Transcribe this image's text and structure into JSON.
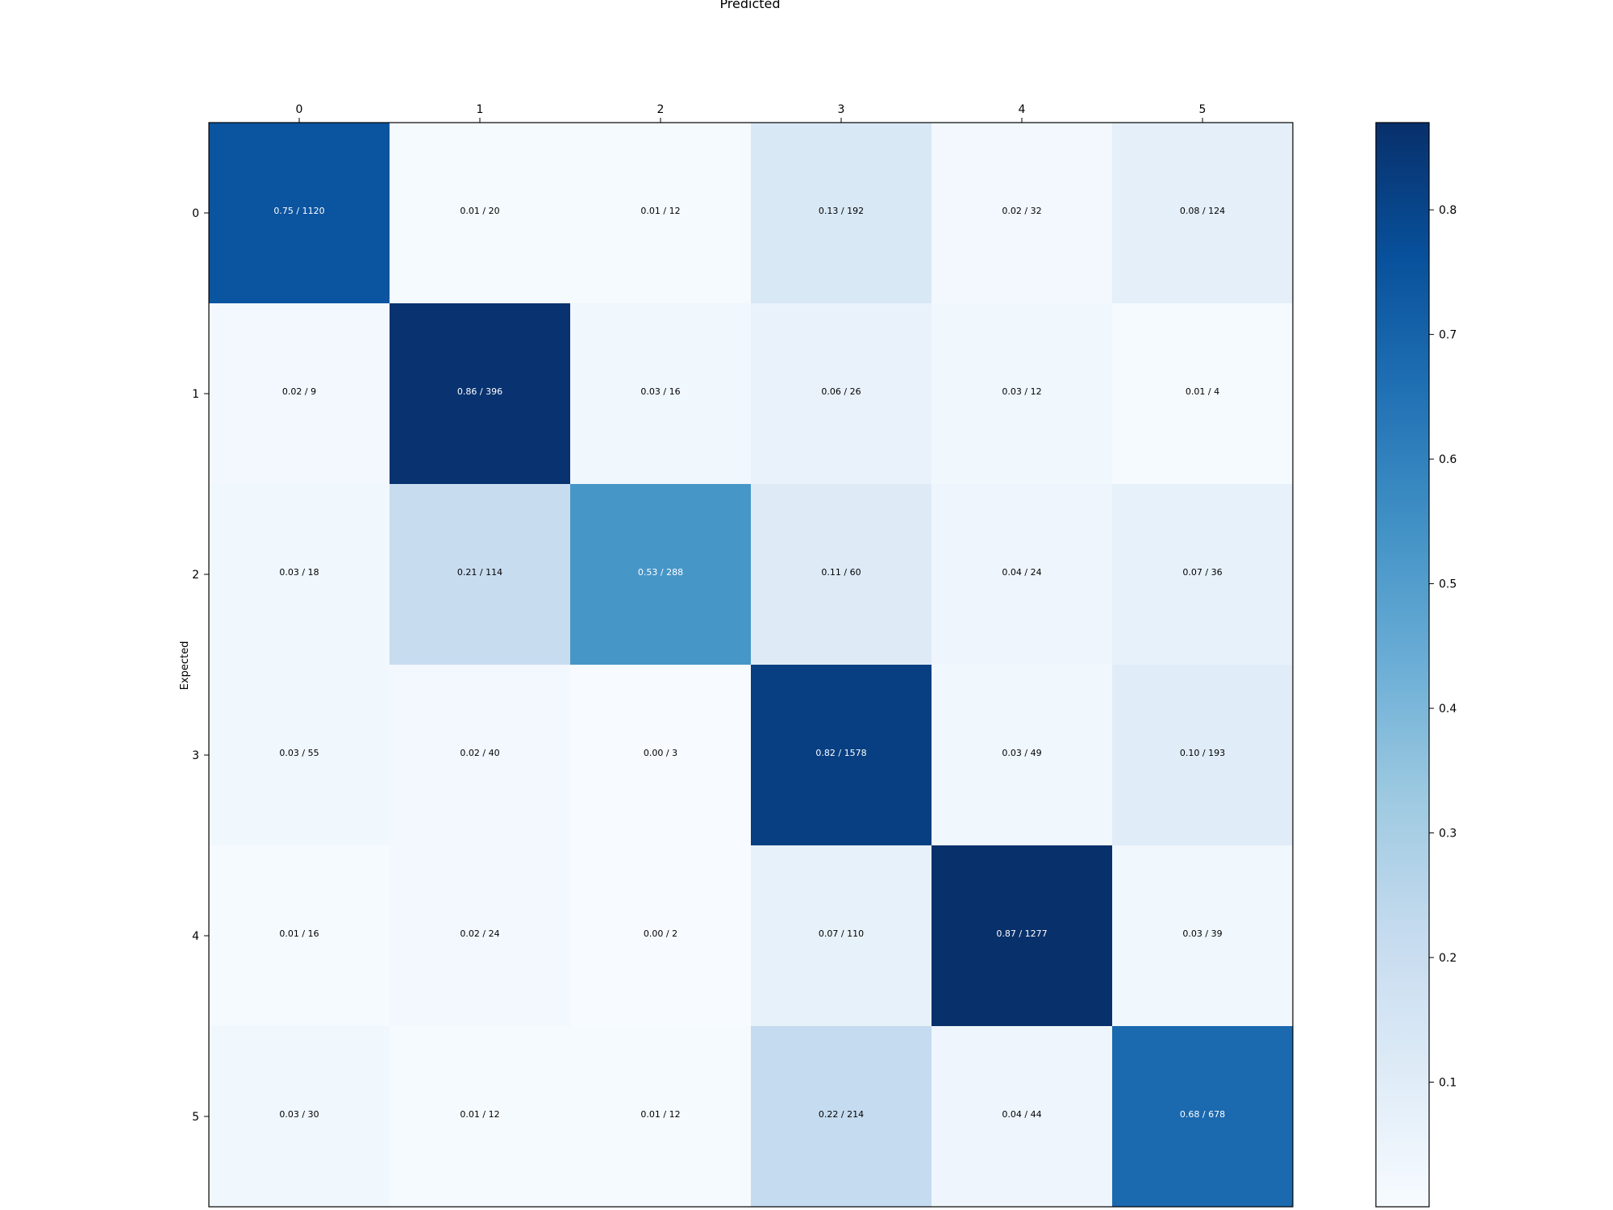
{
  "chart_data": {
    "type": "heatmap",
    "title": "Predicted",
    "xlabel": "Predicted",
    "ylabel": "Expected",
    "x_categories": [
      "0",
      "1",
      "2",
      "3",
      "4",
      "5"
    ],
    "y_categories": [
      "0",
      "1",
      "2",
      "3",
      "4",
      "5"
    ],
    "values": [
      [
        0.75,
        0.01,
        0.01,
        0.13,
        0.02,
        0.08
      ],
      [
        0.02,
        0.86,
        0.03,
        0.06,
        0.03,
        0.01
      ],
      [
        0.03,
        0.21,
        0.53,
        0.11,
        0.04,
        0.07
      ],
      [
        0.03,
        0.02,
        0.0,
        0.82,
        0.03,
        0.1
      ],
      [
        0.01,
        0.02,
        0.0,
        0.07,
        0.87,
        0.03
      ],
      [
        0.03,
        0.01,
        0.01,
        0.22,
        0.04,
        0.68
      ]
    ],
    "counts": [
      [
        1120,
        20,
        12,
        192,
        32,
        124
      ],
      [
        9,
        396,
        16,
        26,
        12,
        4
      ],
      [
        18,
        114,
        288,
        60,
        24,
        36
      ],
      [
        55,
        40,
        3,
        1578,
        49,
        193
      ],
      [
        16,
        24,
        2,
        110,
        1277,
        39
      ],
      [
        30,
        12,
        12,
        214,
        44,
        678
      ]
    ],
    "cell_labels": [
      [
        "0.75 / 1120",
        "0.01 / 20",
        "0.01 / 12",
        "0.13 / 192",
        "0.02 / 32",
        "0.08 / 124"
      ],
      [
        "0.02 / 9",
        "0.86 / 396",
        "0.03 / 16",
        "0.06 / 26",
        "0.03 / 12",
        "0.01 / 4"
      ],
      [
        "0.03 / 18",
        "0.21 / 114",
        "0.53 / 288",
        "0.11 / 60",
        "0.04 / 24",
        "0.07 / 36"
      ],
      [
        "0.03 / 55",
        "0.02 / 40",
        "0.00 / 3",
        "0.82 / 1578",
        "0.03 / 49",
        "0.10 / 193"
      ],
      [
        "0.01 / 16",
        "0.02 / 24",
        "0.00 / 2",
        "0.07 / 110",
        "0.87 / 1277",
        "0.03 / 39"
      ],
      [
        "0.03 / 30",
        "0.01 / 12",
        "0.01 / 12",
        "0.22 / 214",
        "0.04 / 44",
        "0.68 / 678"
      ]
    ],
    "colorbar": {
      "ticks": [
        0.1,
        0.2,
        0.3,
        0.4,
        0.5,
        0.6,
        0.7,
        0.8
      ],
      "tick_labels": [
        "0.1",
        "0.2",
        "0.3",
        "0.4",
        "0.5",
        "0.6",
        "0.7",
        "0.8"
      ],
      "range": [
        0.0,
        0.87
      ],
      "colormap": "Blues"
    },
    "colors": {
      "low": "#f7fbff",
      "high": "#08306b"
    },
    "grid": false,
    "legend": "colorbar-right"
  }
}
